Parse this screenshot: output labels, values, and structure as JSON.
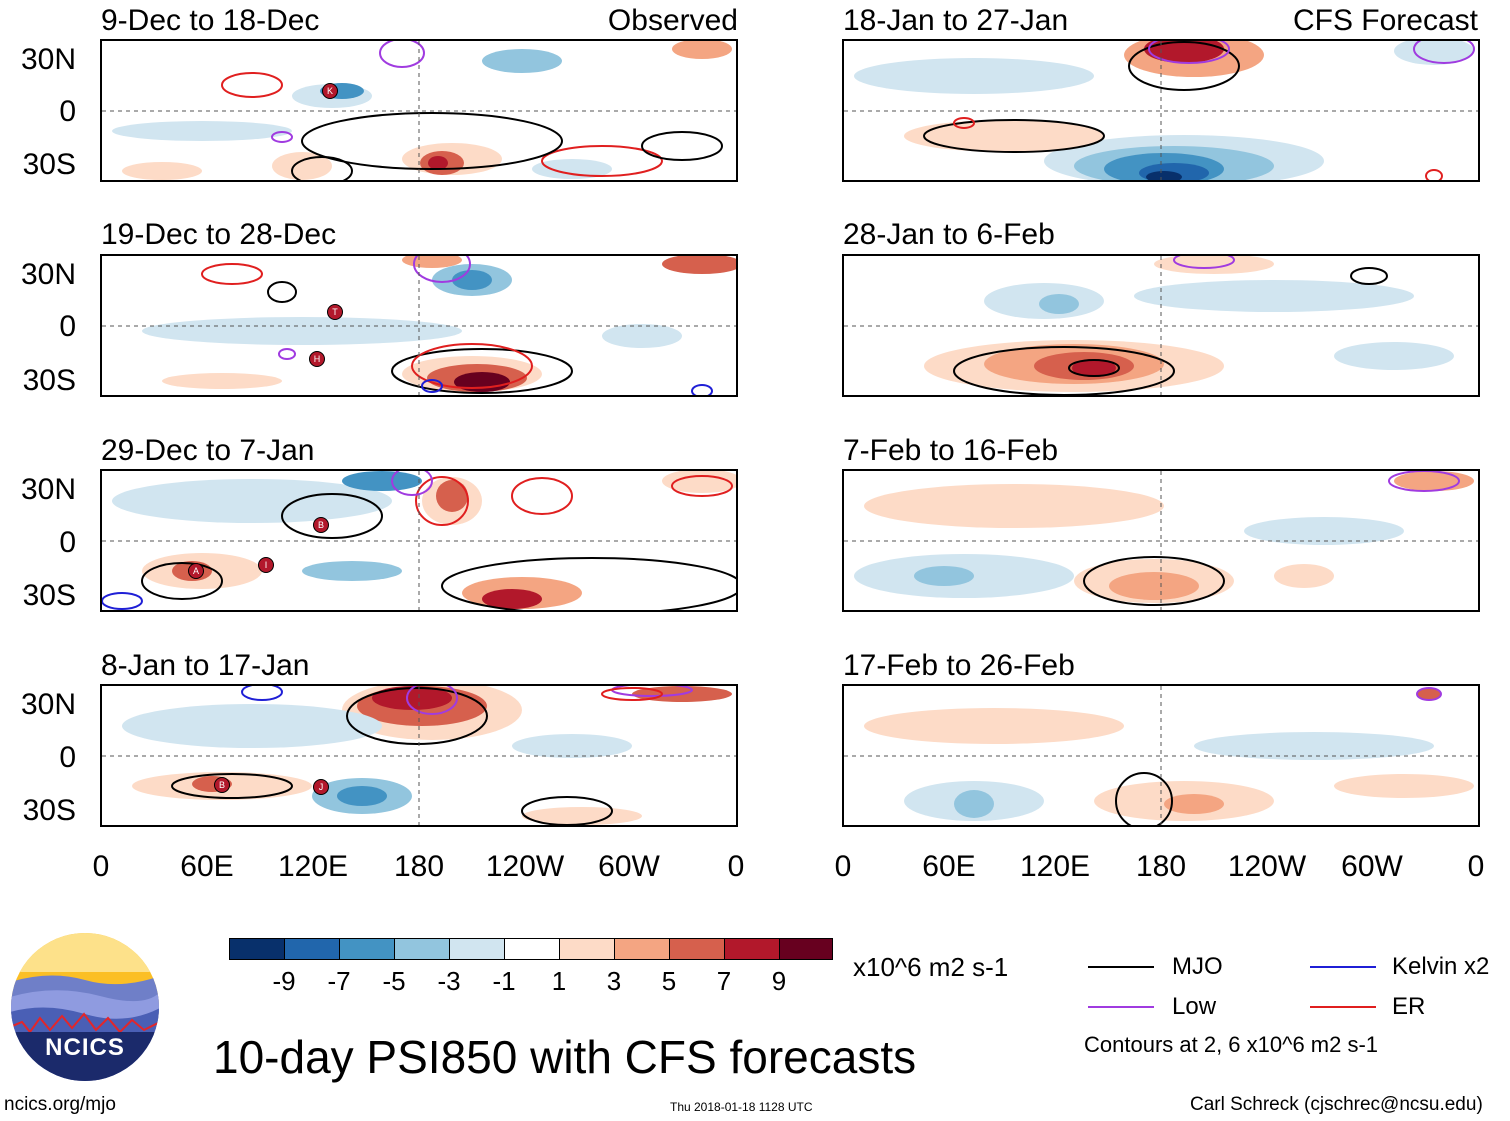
{
  "header": {
    "observed_label": "Observed",
    "forecast_label": "CFS Forecast"
  },
  "panels": {
    "left": [
      {
        "title": "9-Dec to 18-Dec",
        "storms": [
          "K"
        ]
      },
      {
        "title": "19-Dec to 28-Dec",
        "storms": [
          "T",
          "H"
        ]
      },
      {
        "title": "29-Dec to 7-Jan",
        "storms": [
          "B",
          "A",
          "I"
        ]
      },
      {
        "title": "8-Jan to 17-Jan",
        "storms": [
          "B",
          "J"
        ]
      }
    ],
    "right": [
      {
        "title": "18-Jan to 27-Jan"
      },
      {
        "title": "28-Jan to 6-Feb"
      },
      {
        "title": "7-Feb to 16-Feb"
      },
      {
        "title": "17-Feb to 26-Feb"
      }
    ]
  },
  "axes": {
    "lat_labels": [
      "30N",
      "0",
      "30S"
    ],
    "lon_labels": [
      "0",
      "60E",
      "120E",
      "180",
      "120W",
      "60W",
      "0"
    ]
  },
  "colorbar": {
    "colors": [
      "#08306b",
      "#2166ac",
      "#4393c3",
      "#92c5de",
      "#d1e5f0",
      "#ffffff",
      "#fddbc7",
      "#f4a582",
      "#d6604d",
      "#b2182b",
      "#67001f"
    ],
    "ticks": [
      "-9",
      "-7",
      "-5",
      "-3",
      "-1",
      "1",
      "3",
      "5",
      "7",
      "9"
    ],
    "units": "x10^6 m2 s-1"
  },
  "legend": {
    "items": [
      {
        "label": "MJO",
        "color": "#000000"
      },
      {
        "label": "Kelvin x2",
        "color": "#1f1fd6"
      },
      {
        "label": "Low",
        "color": "#a03be0"
      },
      {
        "label": "ER",
        "color": "#e01f1f"
      }
    ],
    "note": "Contours at 2, 6 x10^6 m2 s-1"
  },
  "logo": {
    "text": "NCICS"
  },
  "title": "10-day PSI850 with CFS forecasts",
  "footer": {
    "url": "ncics.org/mjo",
    "timestamp": "Thu 2018-01-18 1128 UTC",
    "credit": "Carl Schreck (cjschrec@ncsu.edu)"
  }
}
